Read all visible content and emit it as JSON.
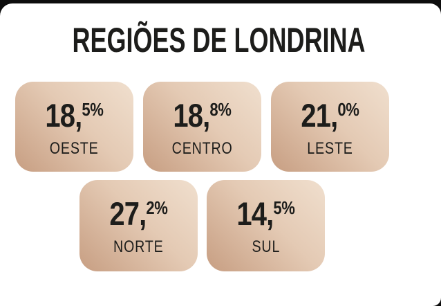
{
  "title": "REGIÕES DE LONDRINA",
  "cards": [
    {
      "region": "OESTE",
      "value": "18,",
      "value_sup": "5%"
    },
    {
      "region": "CENTRO",
      "value": "18,",
      "value_sup": "8%"
    },
    {
      "region": "LESTE",
      "value": "21,",
      "value_sup": "0%"
    },
    {
      "region": "NORTE",
      "value": "27,",
      "value_sup": "2%"
    },
    {
      "region": "SUL",
      "value": "14,",
      "value_sup": "5%"
    }
  ],
  "chart_data": {
    "type": "table",
    "title": "REGIÕES DE LONDRINA",
    "categories": [
      "OESTE",
      "CENTRO",
      "LESTE",
      "NORTE",
      "SUL"
    ],
    "values": [
      18.5,
      18.8,
      21.0,
      27.2,
      14.5
    ],
    "unit": "%"
  },
  "colors": {
    "backdrop": "#0d0d0d",
    "surface": "#ffffff",
    "text": "#1d1d1b",
    "card_gradient_light": "#f0dfce",
    "card_gradient_dark": "#c79e82"
  }
}
